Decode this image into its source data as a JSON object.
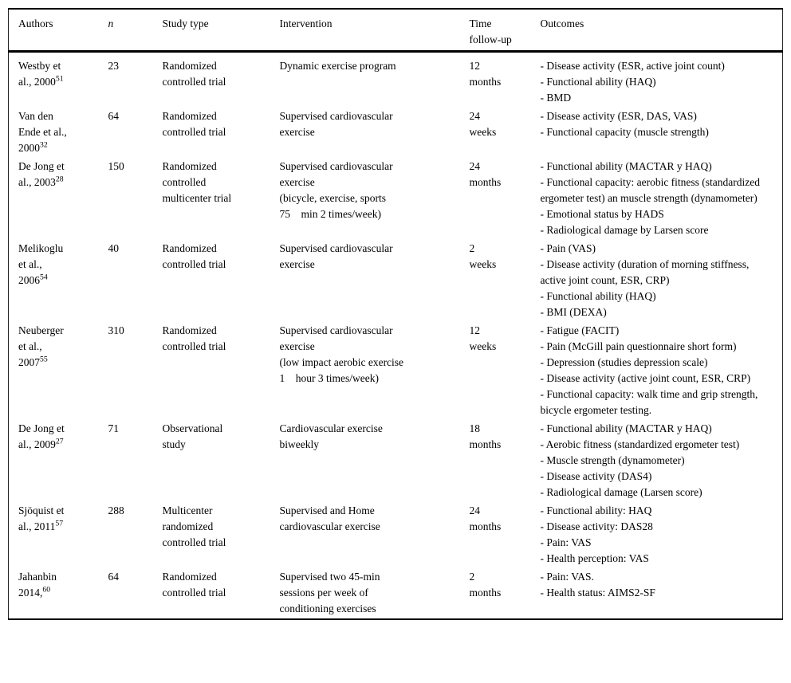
{
  "table": {
    "columns": [
      "Authors",
      "n",
      "Study type",
      "Intervention",
      "Time\nfollow-up",
      "Outcomes"
    ],
    "rows": [
      {
        "authors": "Westby et\nal., 2000^{51}",
        "n": "23",
        "study_type": "Randomized\ncontrolled trial",
        "intervention": "Dynamic exercise program",
        "time": "12\nmonths",
        "outcomes": [
          "- Disease activity (ESR, active joint count)",
          "- Functional ability (HAQ)",
          "- BMD"
        ]
      },
      {
        "authors": "Van den\nEnde et al.,\n2000^{32}",
        "n": "64",
        "study_type": "Randomized\ncontrolled trial",
        "intervention": "Supervised cardiovascular\nexercise",
        "time": "24\nweeks",
        "outcomes": [
          "- Disease activity (ESR, DAS, VAS)",
          "- Functional capacity (muscle strength)"
        ]
      },
      {
        "authors": "De Jong et\nal., 2003^{28}",
        "n": "150",
        "study_type": "Randomized\ncontrolled\nmulticenter trial",
        "intervention": "Supervised cardiovascular\nexercise\n(bicycle, exercise, sports\n75    min 2 times/week)",
        "time": "24\nmonths",
        "outcomes": [
          "- Functional ability (MACTAR y HAQ)",
          "- Functional capacity: aerobic fitness (standardized ergometer test) an muscle strength (dynamometer)",
          "- Emotional status by HADS",
          "- Radiological damage by Larsen score"
        ]
      },
      {
        "authors": "Melikoglu\net al.,\n2006^{54}",
        "n": "40",
        "study_type": "Randomized\ncontrolled trial",
        "intervention": "Supervised cardiovascular\nexercise",
        "time": "2\nweeks",
        "outcomes": [
          "- Pain (VAS)",
          "- Disease activity (duration of morning stiffness, active joint count, ESR, CRP)",
          "- Functional ability (HAQ)",
          "- BMI (DEXA)"
        ]
      },
      {
        "authors": "Neuberger\net al.,\n2007^{55}",
        "n": "310",
        "study_type": "Randomized\ncontrolled trial",
        "intervention": "Supervised cardiovascular\nexercise\n(low impact aerobic exercise\n1    hour 3 times/week)",
        "time": "12\nweeks",
        "outcomes": [
          "- Fatigue (FACIT)",
          "- Pain (McGill pain questionnaire short form)",
          "- Depression (studies depression scale)",
          "- Disease activity (active joint count, ESR, CRP)",
          "- Functional capacity: walk time and grip strength, bicycle ergometer testing."
        ]
      },
      {
        "authors": "De Jong et\nal., 2009^{27}",
        "n": "71",
        "study_type": "Observational\nstudy",
        "intervention": "Cardiovascular exercise\nbiweekly",
        "time": "18\nmonths",
        "outcomes": [
          "- Functional ability (MACTAR y HAQ)",
          "- Aerobic fitness (standardized ergometer test)",
          "- Muscle strength (dynamometer)",
          "- Disease activity (DAS4)",
          "- Radiological damage (Larsen score)"
        ]
      },
      {
        "authors": "Sjöquist et\nal., 2011^{57}",
        "n": "288",
        "study_type": "Multicenter\nrandomized\ncontrolled trial",
        "intervention": "Supervised and Home\ncardiovascular exercise",
        "time": "24\nmonths",
        "outcomes": [
          "- Functional ability: HAQ",
          "- Disease activity: DAS28",
          "- Pain: VAS",
          "- Health perception: VAS"
        ]
      },
      {
        "authors": "Jahanbin\n2014,^{60}",
        "n": "64",
        "study_type": "Randomized\ncontrolled trial",
        "intervention": "Supervised two 45-min\nsessions per week of\nconditioning exercises",
        "time": "2\nmonths",
        "outcomes": [
          "- Pain: VAS.",
          "- Health status: AIMS2-SF"
        ]
      }
    ]
  }
}
